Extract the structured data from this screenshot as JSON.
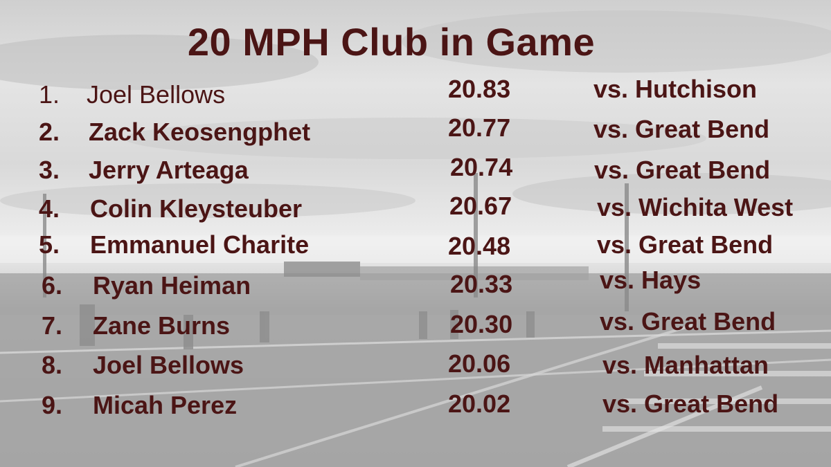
{
  "title": "20 MPH Club in Game",
  "rows": [
    {
      "rank": "1.",
      "name": "Joel Bellows",
      "speed": "20.83",
      "opponent": "vs. Hutchison"
    },
    {
      "rank": "2.",
      "name": "Zack Keosengphet",
      "speed": "20.77",
      "opponent": "vs. Great Bend"
    },
    {
      "rank": "3.",
      "name": "Jerry Arteaga",
      "speed": "20.74",
      "opponent": "vs. Great Bend"
    },
    {
      "rank": "4.",
      "name": "Colin Kleysteuber",
      "speed": "20.67",
      "opponent": "vs. Wichita West"
    },
    {
      "rank": "5.",
      "name": "Emmanuel Charite",
      "speed": "20.48",
      "opponent": "vs. Great Bend"
    },
    {
      "rank": "6.",
      "name": "Ryan Heiman",
      "speed": "20.33",
      "opponent": "vs. Hays"
    },
    {
      "rank": "7.",
      "name": "Zane Burns",
      "speed": "20.30",
      "opponent": "vs. Great Bend"
    },
    {
      "rank": "8.",
      "name": "Joel Bellows",
      "speed": "20.06",
      "opponent": "vs. Manhattan"
    },
    {
      "rank": "9.",
      "name": "Micah Perez",
      "speed": "20.02",
      "opponent": "vs. Great Bend"
    }
  ],
  "colors": {
    "text": "#4b1515"
  }
}
